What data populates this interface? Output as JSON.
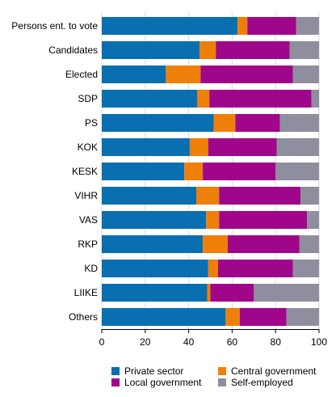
{
  "chart_data": {
    "type": "bar",
    "orientation": "horizontal",
    "stacked": true,
    "categories": [
      "Persons ent. to vote",
      "Candidates",
      "Elected",
      "SDP",
      "PS",
      "KOK",
      "KESK",
      "VIHR",
      "VAS",
      "RKP",
      "KD",
      "LIIKE",
      "Others"
    ],
    "series": [
      {
        "name": "Private sector",
        "color": "#0a6fb0",
        "values": [
          62.5,
          45.0,
          29.5,
          44.0,
          51.5,
          40.5,
          38.0,
          43.5,
          48.0,
          46.5,
          49.0,
          48.5,
          57.0
        ]
      },
      {
        "name": "Central government",
        "color": "#f07f09",
        "values": [
          4.5,
          7.5,
          16.0,
          5.5,
          10.0,
          8.5,
          8.5,
          10.5,
          6.0,
          11.5,
          4.5,
          1.5,
          6.5
        ]
      },
      {
        "name": "Local government",
        "color": "#a0068a",
        "values": [
          22.5,
          34.0,
          42.5,
          47.0,
          20.5,
          31.5,
          33.5,
          37.5,
          40.5,
          33.0,
          34.5,
          20.0,
          21.5
        ]
      },
      {
        "name": "Self-employed",
        "color": "#8e8e9e",
        "values": [
          10.5,
          13.5,
          12.0,
          3.5,
          18.0,
          19.5,
          20.0,
          8.5,
          5.5,
          9.0,
          12.0,
          30.0,
          15.0
        ]
      }
    ],
    "xlim": [
      0,
      100
    ],
    "xticks": [
      0,
      20,
      40,
      60,
      80,
      100
    ],
    "grid": true,
    "legend_position": "bottom"
  }
}
